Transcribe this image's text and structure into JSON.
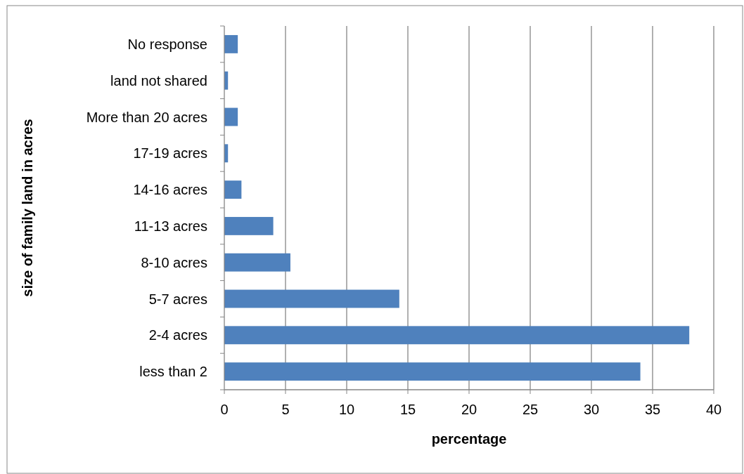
{
  "chart_data": {
    "type": "bar",
    "orientation": "horizontal",
    "xlabel": "percentage",
    "ylabel": "size of family land in acres",
    "categories": [
      "No response",
      "land not shared",
      "More than 20 acres",
      "17-19 acres",
      "14-16 acres",
      "11-13 acres",
      "8-10 acres",
      "5-7 acres",
      "2-4 acres",
      "less than 2"
    ],
    "values": [
      1.1,
      0.3,
      1.1,
      0.3,
      1.4,
      4.0,
      5.4,
      14.3,
      38.0,
      34.0
    ],
    "color": "#4f81bd",
    "xlim": [
      0,
      40
    ],
    "xticks": [
      0,
      5,
      10,
      15,
      20,
      25,
      30,
      35,
      40
    ],
    "grid": "x"
  }
}
